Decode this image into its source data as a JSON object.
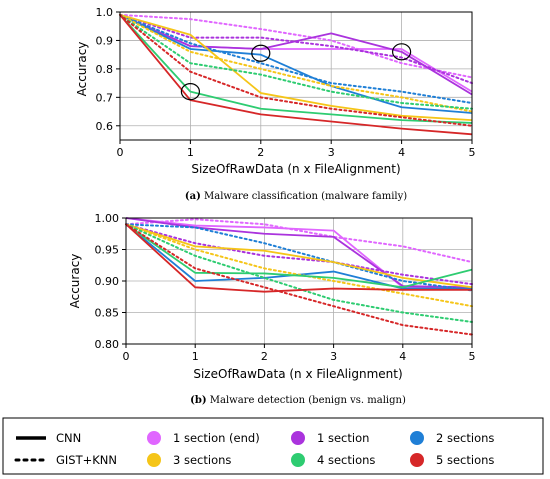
{
  "chart_data": [
    {
      "type": "line",
      "caption_label": "(a)",
      "caption_text": " Malware classification (malware family)",
      "xlabel": "SizeOfRawData (n x FileAlignment)",
      "ylabel": "Accuracy",
      "xlim": [
        0,
        5
      ],
      "ylim": [
        0.55,
        1.0
      ],
      "xticks": [
        0,
        1,
        2,
        3,
        4,
        5
      ],
      "yticks": [
        0.6,
        0.7,
        0.8,
        0.9,
        1.0
      ],
      "ytick_labels": [
        "0.6",
        "0.7",
        "0.8",
        "0.9",
        "1.0"
      ],
      "grid": true,
      "x": [
        0,
        1,
        2,
        3,
        4,
        5
      ],
      "series": [
        {
          "label": "1 section (end)",
          "method": "CNN",
          "color": "#e066ff",
          "values": [
            0.99,
            0.88,
            0.87,
            0.87,
            0.87,
            0.72
          ]
        },
        {
          "label": "1 section (end)",
          "method": "GIST+KNN",
          "color": "#e066ff",
          "values": [
            0.99,
            0.975,
            0.94,
            0.9,
            0.82,
            0.77
          ]
        },
        {
          "label": "1 section",
          "method": "CNN",
          "color": "#aa33dd",
          "values": [
            0.99,
            0.88,
            0.87,
            0.925,
            0.86,
            0.71
          ]
        },
        {
          "label": "1 section",
          "method": "GIST+KNN",
          "color": "#aa33dd",
          "values": [
            0.99,
            0.91,
            0.91,
            0.88,
            0.84,
            0.75
          ]
        },
        {
          "label": "2 sections",
          "method": "CNN",
          "color": "#1f7fd6",
          "values": [
            0.99,
            0.87,
            0.85,
            0.74,
            0.665,
            0.645
          ]
        },
        {
          "label": "2 sections",
          "method": "GIST+KNN",
          "color": "#1f7fd6",
          "values": [
            0.99,
            0.89,
            0.82,
            0.75,
            0.72,
            0.68
          ]
        },
        {
          "label": "3 sections",
          "method": "CNN",
          "color": "#f5c518",
          "values": [
            0.99,
            0.92,
            0.715,
            0.67,
            0.635,
            0.62
          ]
        },
        {
          "label": "3 sections",
          "method": "GIST+KNN",
          "color": "#f5c518",
          "values": [
            0.99,
            0.86,
            0.8,
            0.74,
            0.7,
            0.65
          ]
        },
        {
          "label": "4 sections",
          "method": "CNN",
          "color": "#2ecc71",
          "values": [
            0.99,
            0.72,
            0.66,
            0.64,
            0.62,
            0.61
          ]
        },
        {
          "label": "4 sections",
          "method": "GIST+KNN",
          "color": "#2ecc71",
          "values": [
            0.99,
            0.82,
            0.78,
            0.72,
            0.68,
            0.66
          ]
        },
        {
          "label": "5 sections",
          "method": "CNN",
          "color": "#d62728",
          "values": [
            0.99,
            0.69,
            0.64,
            0.615,
            0.59,
            0.57
          ]
        },
        {
          "label": "5 sections",
          "method": "GIST+KNN",
          "color": "#d62728",
          "values": [
            0.99,
            0.79,
            0.7,
            0.66,
            0.63,
            0.6
          ]
        }
      ],
      "circled_points": [
        {
          "x": 1,
          "y": 0.72
        },
        {
          "x": 2,
          "y": 0.855
        },
        {
          "x": 4,
          "y": 0.86
        }
      ]
    },
    {
      "type": "line",
      "caption_label": "(b)",
      "caption_text": " Malware detection (benign vs. malign)",
      "xlabel": "SizeOfRawData (n x FileAlignment)",
      "ylabel": "Accuracy",
      "xlim": [
        0,
        5
      ],
      "ylim": [
        0.8,
        1.0
      ],
      "xticks": [
        0,
        1,
        2,
        3,
        4,
        5
      ],
      "yticks": [
        0.8,
        0.85,
        0.9,
        0.95,
        1.0
      ],
      "ytick_labels": [
        "0.80",
        "0.85",
        "0.90",
        "0.95",
        "1.00"
      ],
      "grid": true,
      "x": [
        0,
        1,
        2,
        3,
        4,
        5
      ],
      "series": [
        {
          "label": "1 section (end)",
          "method": "CNN",
          "color": "#e066ff",
          "values": [
            1.0,
            0.988,
            0.985,
            0.98,
            0.89,
            0.89
          ]
        },
        {
          "label": "1 section (end)",
          "method": "GIST+KNN",
          "color": "#e066ff",
          "values": [
            0.99,
            0.998,
            0.99,
            0.97,
            0.955,
            0.93
          ]
        },
        {
          "label": "1 section",
          "method": "CNN",
          "color": "#aa33dd",
          "values": [
            1.0,
            0.985,
            0.975,
            0.97,
            0.892,
            0.89
          ]
        },
        {
          "label": "1 section",
          "method": "GIST+KNN",
          "color": "#aa33dd",
          "values": [
            0.99,
            0.96,
            0.94,
            0.93,
            0.91,
            0.895
          ]
        },
        {
          "label": "2 sections",
          "method": "CNN",
          "color": "#1f7fd6",
          "values": [
            0.99,
            0.9,
            0.905,
            0.915,
            0.888,
            0.888
          ]
        },
        {
          "label": "2 sections",
          "method": "GIST+KNN",
          "color": "#1f7fd6",
          "values": [
            0.99,
            0.985,
            0.96,
            0.93,
            0.9,
            0.885
          ]
        },
        {
          "label": "3 sections",
          "method": "CNN",
          "color": "#f5c518",
          "values": [
            0.99,
            0.955,
            0.948,
            0.93,
            0.905,
            0.89
          ]
        },
        {
          "label": "3 sections",
          "method": "GIST+KNN",
          "color": "#f5c518",
          "values": [
            0.99,
            0.95,
            0.92,
            0.9,
            0.88,
            0.86
          ]
        },
        {
          "label": "4 sections",
          "method": "CNN",
          "color": "#2ecc71",
          "values": [
            0.99,
            0.913,
            0.912,
            0.905,
            0.89,
            0.918
          ]
        },
        {
          "label": "4 sections",
          "method": "GIST+KNN",
          "color": "#2ecc71",
          "values": [
            0.99,
            0.94,
            0.905,
            0.87,
            0.85,
            0.835
          ]
        },
        {
          "label": "5 sections",
          "method": "CNN",
          "color": "#d62728",
          "values": [
            0.99,
            0.89,
            0.883,
            0.888,
            0.886,
            0.886
          ]
        },
        {
          "label": "5 sections",
          "method": "GIST+KNN",
          "color": "#d62728",
          "values": [
            0.99,
            0.92,
            0.89,
            0.86,
            0.83,
            0.815
          ]
        }
      ]
    }
  ],
  "legend": {
    "styles": [
      {
        "label": "CNN",
        "dash": "solid"
      },
      {
        "label": "GIST+KNN",
        "dash": "dotted"
      }
    ],
    "entries": [
      {
        "label": "1 section (end)",
        "color": "#e066ff"
      },
      {
        "label": "1 section",
        "color": "#aa33dd"
      },
      {
        "label": "2 sections",
        "color": "#1f7fd6"
      },
      {
        "label": "3 sections",
        "color": "#f5c518"
      },
      {
        "label": "4 sections",
        "color": "#2ecc71"
      },
      {
        "label": "5 sections",
        "color": "#d62728"
      }
    ]
  }
}
